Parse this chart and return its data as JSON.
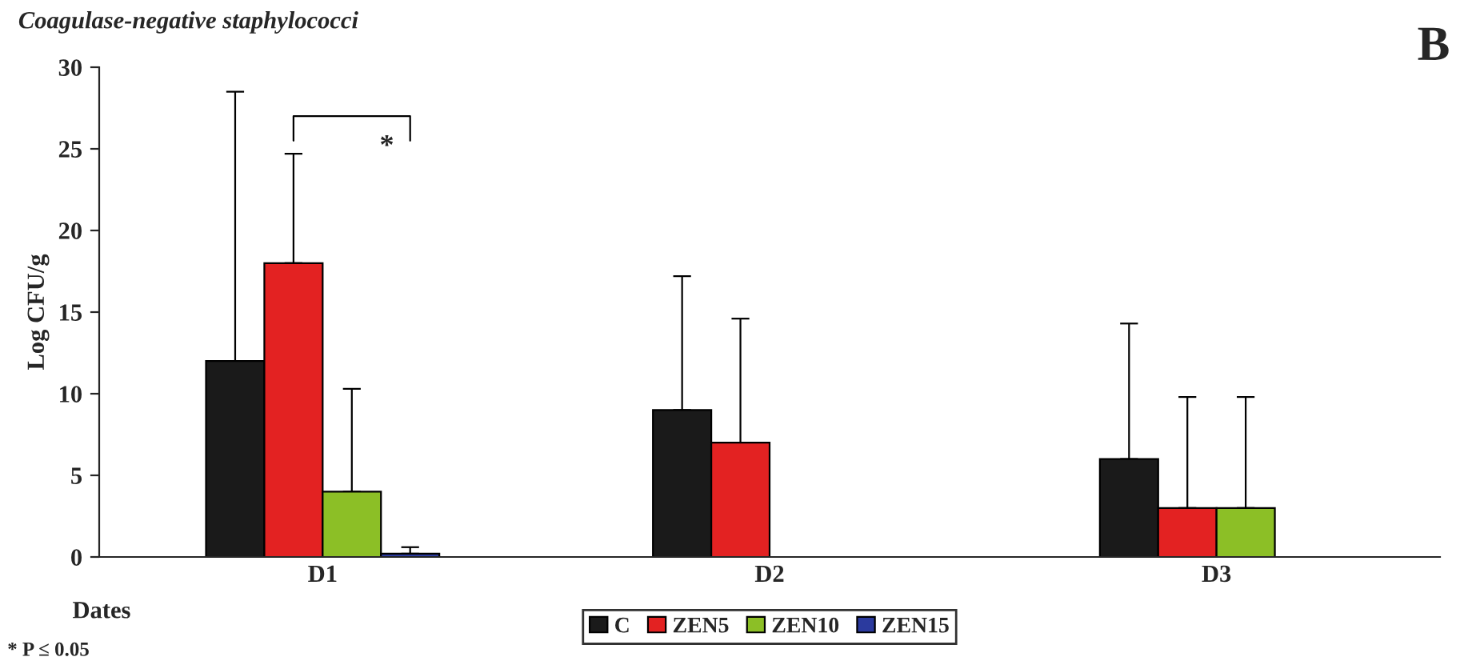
{
  "chart_data": {
    "type": "bar",
    "title": "Coagulase-negative staphylococci",
    "xlabel": "Dates",
    "ylabel": "Log CFU/g",
    "categories": [
      "D1",
      "D2",
      "D3"
    ],
    "series": [
      {
        "name": "C",
        "color": "#1a1a1a",
        "values": [
          12,
          9,
          6
        ],
        "errors": [
          [
            12,
            28.5
          ],
          [
            9,
            17.2
          ],
          [
            6,
            14.3
          ]
        ]
      },
      {
        "name": "ZEN5",
        "color": "#e32222",
        "values": [
          18,
          7,
          3
        ],
        "errors": [
          [
            18,
            24.7
          ],
          [
            7,
            14.6
          ],
          [
            3,
            9.8
          ]
        ]
      },
      {
        "name": "ZEN10",
        "color": "#8cbf26",
        "values": [
          4,
          0,
          3
        ],
        "errors": [
          [
            4,
            10.3
          ],
          null,
          [
            3,
            9.8
          ]
        ]
      },
      {
        "name": "ZEN15",
        "color": "#2b3a9e",
        "values": [
          0.2,
          0,
          0
        ],
        "errors": [
          [
            0.2,
            0.6
          ],
          null,
          null
        ]
      }
    ],
    "ylim": [
      0,
      30
    ],
    "yticks": [
      0,
      5,
      10,
      15,
      20,
      25,
      30
    ],
    "grid": false,
    "legend": "bottom",
    "annotations": [
      "B",
      "*",
      "* P ≤ 0.05"
    ]
  }
}
